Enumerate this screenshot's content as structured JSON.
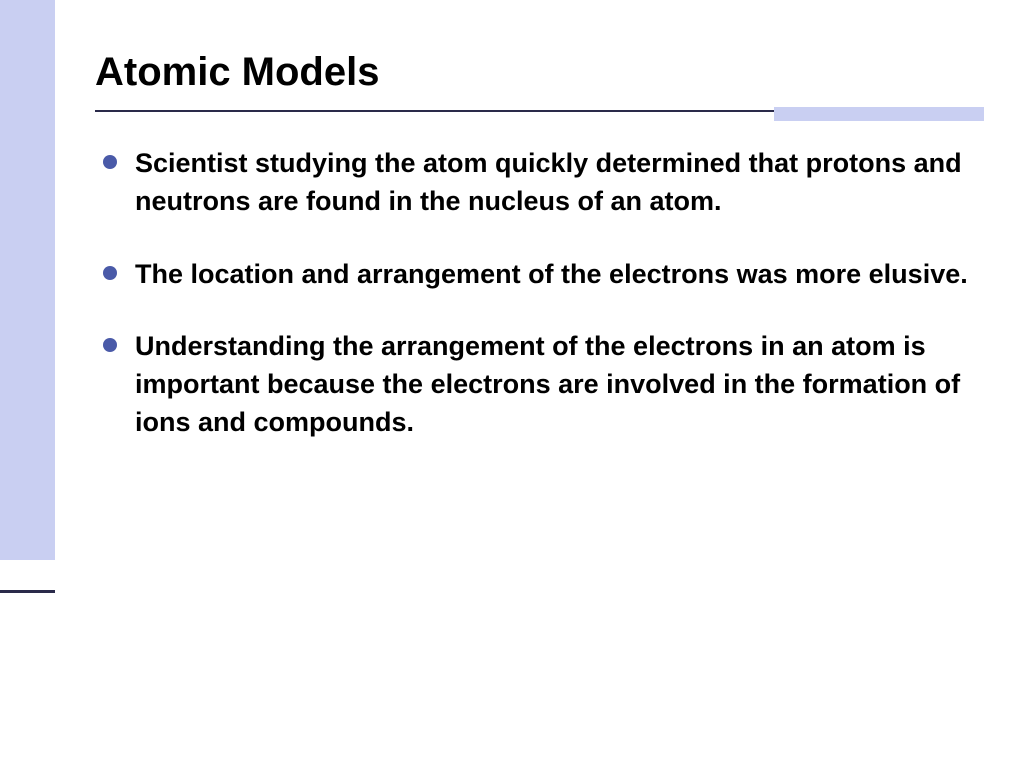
{
  "slide": {
    "title": "Atomic Models",
    "bullets": [
      "Scientist studying the atom quickly determined that protons and neutrons are found in the nucleus of an atom.",
      "The location and arrangement of the electrons was more elusive.",
      "Understanding the arrangement of the electrons in an atom is important because the electrons are involved in the formation of ions and compounds."
    ]
  },
  "colors": {
    "accent_light": "#c9cff2",
    "accent_dark": "#4a5aa8",
    "line_dark": "#2a2a4a",
    "text": "#000000",
    "background": "#ffffff"
  },
  "typography": {
    "font_family": "Comic Sans MS",
    "title_size": 40,
    "body_size": 27,
    "weight": "bold"
  }
}
